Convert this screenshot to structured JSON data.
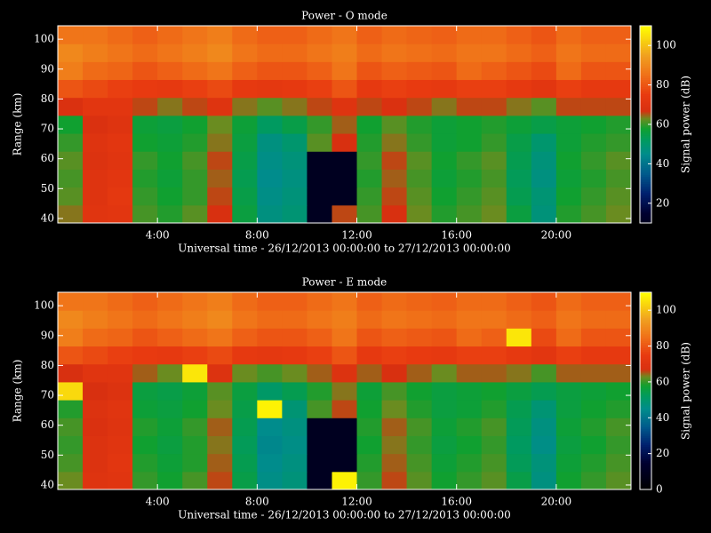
{
  "chart_data": [
    {
      "type": "heatmap",
      "title": "Power - O mode",
      "x_label": "Universal time - 26/12/2013 00:00:00 to 27/12/2013 00:00:00",
      "y_label": "Range (km)",
      "colorbar_label": "Signal power (dB)",
      "x": [
        0,
        1,
        2,
        3,
        4,
        5,
        6,
        7,
        8,
        9,
        10,
        11,
        12,
        13,
        14,
        15,
        16,
        17,
        18,
        19,
        20,
        21,
        22
      ],
      "y": [
        41.5,
        47.5,
        53.5,
        59.5,
        65.5,
        71.5,
        77.5,
        83.5,
        89.5,
        95.5,
        101.5
      ],
      "values": [
        [
          64,
          71,
          72,
          61,
          59,
          62,
          67,
          56,
          47,
          49,
          10,
          66,
          61,
          67,
          63,
          59,
          61,
          63,
          56,
          48,
          59,
          61,
          63
        ],
        [
          62,
          70,
          73,
          60,
          58,
          60,
          66,
          55,
          46,
          48,
          10,
          10,
          60,
          66,
          62,
          58,
          60,
          62,
          54,
          49,
          58,
          60,
          62
        ],
        [
          61,
          70,
          72,
          59,
          57,
          60,
          65,
          54,
          45,
          47,
          10,
          10,
          59,
          65,
          61,
          57,
          59,
          61,
          53,
          47,
          57,
          59,
          61
        ],
        [
          62,
          69,
          71,
          60,
          58,
          61,
          66,
          55,
          46,
          48,
          10,
          10,
          60,
          66,
          62,
          58,
          60,
          62,
          54,
          48,
          58,
          60,
          62
        ],
        [
          60,
          70,
          72,
          58,
          57,
          59,
          64,
          56,
          47,
          50,
          62,
          67,
          59,
          64,
          60,
          57,
          58,
          60,
          55,
          50,
          57,
          59,
          60
        ],
        [
          58,
          68,
          70,
          57,
          56,
          58,
          63,
          57,
          52,
          55,
          60,
          65,
          58,
          62,
          59,
          57,
          58,
          59,
          57,
          55,
          57,
          58,
          59
        ],
        [
          68,
          72,
          72,
          66,
          64,
          66,
          70,
          64,
          62,
          64,
          66,
          70,
          66,
          68,
          66,
          64,
          66,
          66,
          64,
          62,
          66,
          66,
          66
        ],
        [
          80,
          78,
          76,
          75,
          74,
          76,
          78,
          74,
          73,
          74,
          76,
          80,
          74,
          76,
          75,
          74,
          76,
          76,
          74,
          72,
          76,
          74,
          74
        ],
        [
          88,
          84,
          83,
          80,
          82,
          84,
          86,
          82,
          80,
          80,
          82,
          86,
          80,
          82,
          81,
          80,
          84,
          82,
          80,
          78,
          84,
          80,
          80
        ],
        [
          90,
          88,
          86,
          84,
          86,
          88,
          90,
          86,
          84,
          84,
          86,
          88,
          84,
          86,
          85,
          84,
          86,
          86,
          84,
          82,
          86,
          84,
          84
        ],
        [
          86,
          86,
          84,
          82,
          84,
          86,
          88,
          84,
          82,
          82,
          84,
          86,
          82,
          84,
          83,
          82,
          84,
          84,
          82,
          80,
          84,
          82,
          82
        ]
      ],
      "xlim": [
        0,
        23
      ],
      "ylim": [
        38.5,
        104.5
      ],
      "xticks": [
        {
          "value": 4,
          "label": "4:00"
        },
        {
          "value": 8,
          "label": "8:00"
        },
        {
          "value": 12,
          "label": "12:00"
        },
        {
          "value": 16,
          "label": "16:00"
        },
        {
          "value": 20,
          "label": "20:00"
        }
      ],
      "yticks": [
        40,
        50,
        60,
        70,
        80,
        90,
        100
      ],
      "clim": [
        10,
        110
      ],
      "cticks": [
        20,
        40,
        60,
        80,
        100
      ],
      "colorscale": [
        [
          0,
          "#000000"
        ],
        [
          15,
          "#000030"
        ],
        [
          25,
          "#00206e"
        ],
        [
          35,
          "#005a8c"
        ],
        [
          45,
          "#008c8c"
        ],
        [
          52,
          "#009a60"
        ],
        [
          58,
          "#10a030"
        ],
        [
          63,
          "#6a8c20"
        ],
        [
          67,
          "#d83010"
        ],
        [
          75,
          "#e83a10"
        ],
        [
          85,
          "#f07018"
        ],
        [
          95,
          "#f0a020"
        ],
        [
          110,
          "#ffff00"
        ]
      ]
    },
    {
      "type": "heatmap",
      "title": "Power - E mode",
      "x_label": "Universal time - 26/12/2013 00:00:00 to 27/12/2013 00:00:00",
      "y_label": "Range (km)",
      "colorbar_label": "Signal power (dB)",
      "x": [
        0,
        1,
        2,
        3,
        4,
        5,
        6,
        7,
        8,
        9,
        10,
        11,
        12,
        13,
        14,
        15,
        16,
        17,
        18,
        19,
        20,
        21,
        22
      ],
      "y": [
        41.5,
        47.5,
        53.5,
        59.5,
        65.5,
        71.5,
        77.5,
        83.5,
        89.5,
        95.5,
        101.5
      ],
      "values": [
        [
          63,
          70,
          71,
          60,
          58,
          61,
          66,
          55,
          46,
          48,
          10,
          108,
          60,
          66,
          62,
          58,
          60,
          62,
          55,
          47,
          58,
          60,
          62
        ],
        [
          61,
          69,
          72,
          59,
          57,
          59,
          65,
          54,
          45,
          47,
          10,
          10,
          59,
          65,
          61,
          57,
          59,
          61,
          53,
          48,
          57,
          59,
          61
        ],
        [
          60,
          69,
          71,
          58,
          56,
          59,
          64,
          53,
          44,
          46,
          10,
          10,
          58,
          64,
          60,
          56,
          58,
          60,
          52,
          46,
          56,
          58,
          60
        ],
        [
          61,
          68,
          70,
          59,
          57,
          60,
          65,
          54,
          45,
          47,
          10,
          10,
          59,
          65,
          61,
          57,
          59,
          61,
          53,
          47,
          57,
          59,
          61
        ],
        [
          59,
          69,
          71,
          57,
          56,
          58,
          63,
          55,
          108,
          49,
          61,
          66,
          58,
          63,
          59,
          56,
          57,
          59,
          54,
          49,
          56,
          58,
          59
        ],
        [
          104,
          67,
          69,
          56,
          55,
          57,
          62,
          56,
          51,
          54,
          59,
          64,
          57,
          61,
          58,
          56,
          57,
          58,
          56,
          54,
          56,
          57,
          58
        ],
        [
          67,
          71,
          71,
          65,
          63,
          106,
          69,
          63,
          61,
          63,
          65,
          69,
          65,
          67,
          65,
          63,
          65,
          65,
          64,
          61,
          65,
          65,
          65
        ],
        [
          80,
          78,
          76,
          75,
          74,
          76,
          78,
          74,
          73,
          74,
          76,
          80,
          74,
          76,
          75,
          74,
          76,
          76,
          74,
          72,
          76,
          74,
          74
        ],
        [
          88,
          84,
          83,
          80,
          82,
          84,
          86,
          82,
          80,
          80,
          82,
          86,
          80,
          82,
          81,
          80,
          84,
          82,
          106,
          78,
          84,
          80,
          80
        ],
        [
          90,
          88,
          86,
          84,
          86,
          88,
          90,
          86,
          84,
          84,
          86,
          88,
          84,
          86,
          85,
          84,
          86,
          86,
          84,
          82,
          86,
          84,
          84
        ],
        [
          86,
          86,
          84,
          82,
          84,
          86,
          88,
          84,
          82,
          82,
          84,
          86,
          82,
          84,
          83,
          82,
          84,
          84,
          82,
          80,
          84,
          82,
          82
        ]
      ],
      "xlim": [
        0,
        23
      ],
      "ylim": [
        38.5,
        104.5
      ],
      "xticks": [
        {
          "value": 4,
          "label": "4:00"
        },
        {
          "value": 8,
          "label": "8:00"
        },
        {
          "value": 12,
          "label": "12:00"
        },
        {
          "value": 16,
          "label": "16:00"
        },
        {
          "value": 20,
          "label": "20:00"
        }
      ],
      "yticks": [
        40,
        50,
        60,
        70,
        80,
        90,
        100
      ],
      "clim": [
        0,
        110
      ],
      "cticks": [
        0,
        20,
        40,
        60,
        80,
        100
      ],
      "colorscale": [
        [
          0,
          "#000000"
        ],
        [
          15,
          "#000030"
        ],
        [
          25,
          "#00206e"
        ],
        [
          35,
          "#005a8c"
        ],
        [
          45,
          "#008c8c"
        ],
        [
          52,
          "#009a60"
        ],
        [
          58,
          "#10a030"
        ],
        [
          63,
          "#6a8c20"
        ],
        [
          67,
          "#d83010"
        ],
        [
          75,
          "#e83a10"
        ],
        [
          85,
          "#f07018"
        ],
        [
          95,
          "#f0a020"
        ],
        [
          110,
          "#ffff00"
        ]
      ]
    }
  ]
}
